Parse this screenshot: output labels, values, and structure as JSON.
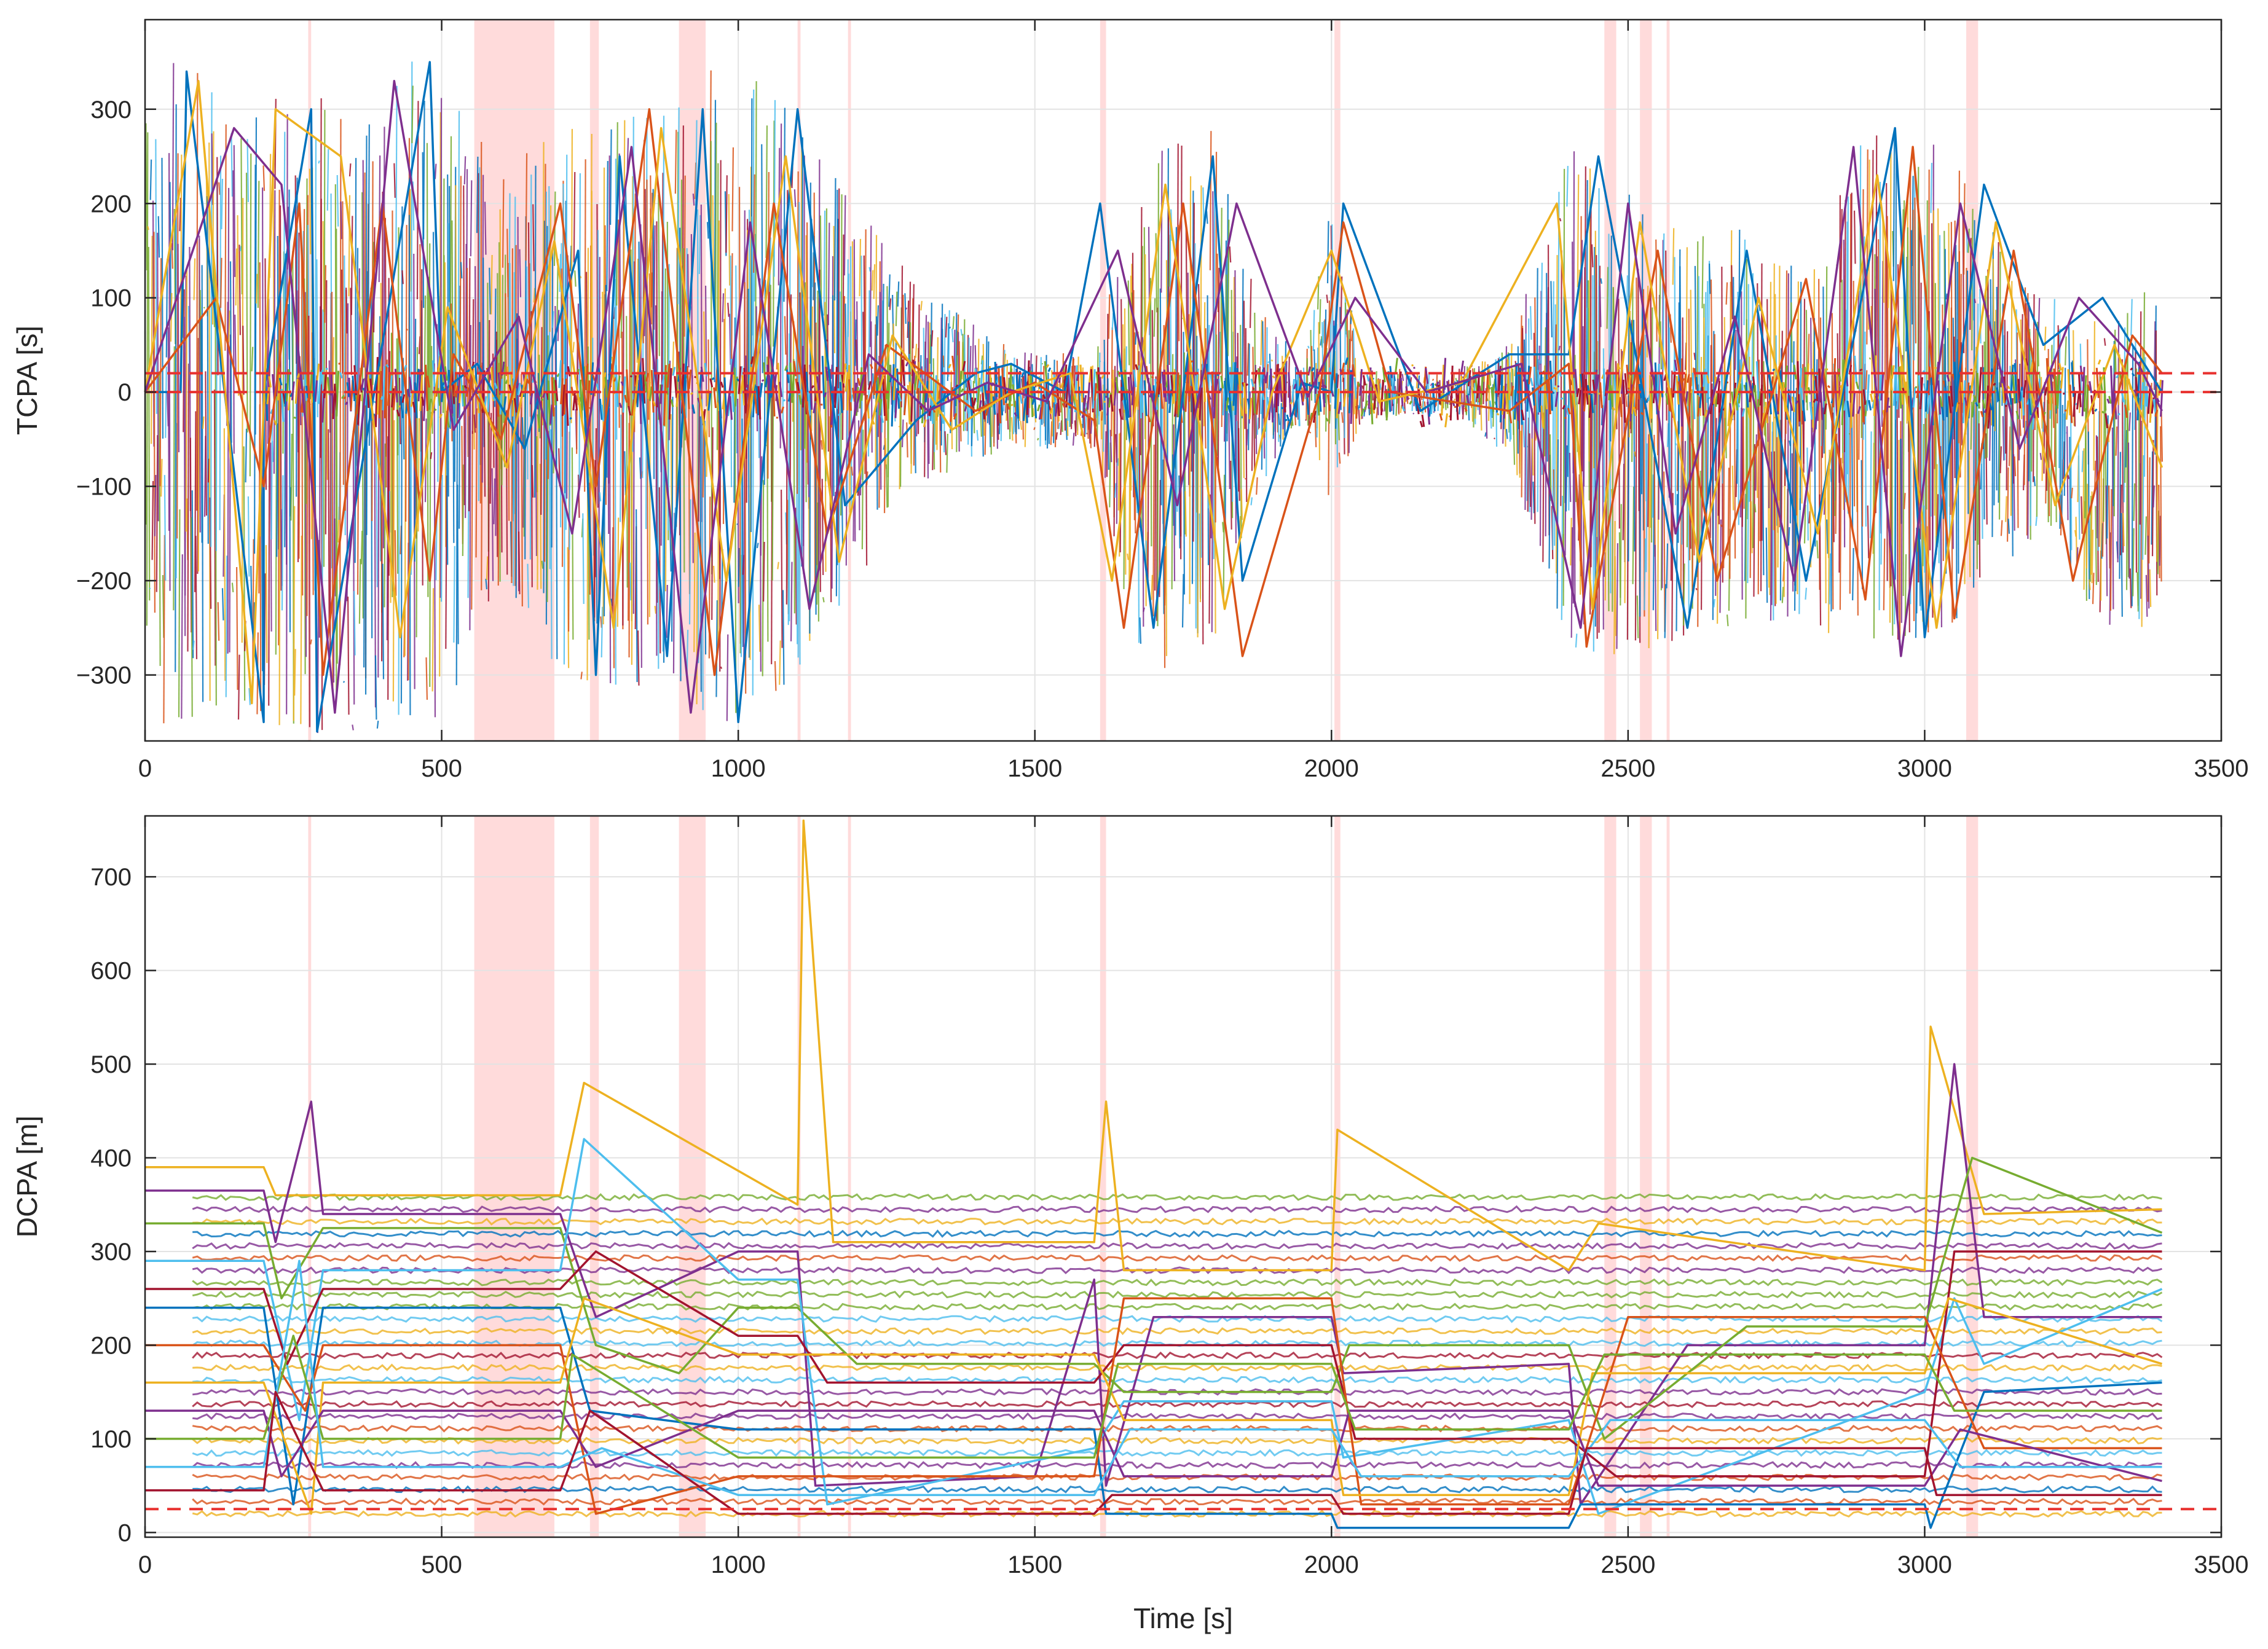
{
  "chart_data": [
    {
      "type": "line",
      "ylabel": "TCPA [s]",
      "xlabel": "",
      "xlim": [
        0,
        3500
      ],
      "ylim": [
        -370,
        395
      ],
      "xticks": [
        0,
        500,
        1000,
        1500,
        2000,
        2500,
        3000,
        3500
      ],
      "xtick_labels": [
        "0",
        "500",
        "1000",
        "1500",
        "2000",
        "2500",
        "3000",
        "3500"
      ],
      "yticks": [
        -300,
        -200,
        -100,
        0,
        100,
        200,
        300
      ],
      "ytick_labels": [
        "−300",
        "−200",
        "−100",
        "0",
        "100",
        "200",
        "300"
      ],
      "grid": true,
      "reference_lines": [
        {
          "value": 20,
          "style": "dashed",
          "color": "#e8312f"
        },
        {
          "value": 0,
          "style": "dashed",
          "color": "#e8312f"
        }
      ],
      "envelope": {
        "x": [
          0,
          60,
          200,
          270,
          350,
          500,
          600,
          700,
          800,
          880,
          940,
          1000,
          1100,
          1200,
          1300,
          1450,
          1600,
          1680,
          1800,
          1850,
          1950,
          2000,
          2050,
          2200,
          2300,
          2400,
          2500,
          2600,
          2700,
          2800,
          2900,
          2950,
          3000,
          3050,
          3100,
          3200,
          3300,
          3400
        ],
        "upper": [
          360,
          350,
          350,
          300,
          360,
          350,
          250,
          280,
          320,
          300,
          350,
          350,
          300,
          200,
          120,
          50,
          40,
          250,
          280,
          150,
          20,
          230,
          30,
          20,
          60,
          270,
          230,
          200,
          170,
          130,
          290,
          280,
          270,
          260,
          200,
          100,
          110,
          110
        ],
        "lower": [
          -360,
          -350,
          -350,
          -370,
          -360,
          -350,
          -200,
          -300,
          -320,
          -300,
          -350,
          -350,
          -300,
          -200,
          -100,
          -60,
          -60,
          -300,
          -280,
          -150,
          -20,
          -120,
          -30,
          -20,
          -70,
          -280,
          -280,
          -270,
          -240,
          -250,
          -270,
          -280,
          -260,
          -250,
          -200,
          -150,
          -250,
          -250
        ]
      },
      "shaded_intervals": [
        [
          275,
          280
        ],
        [
          555,
          690
        ],
        [
          750,
          765
        ],
        [
          900,
          945
        ],
        [
          1100,
          1105
        ],
        [
          1185,
          1190
        ],
        [
          1610,
          1620
        ],
        [
          2005,
          2015
        ],
        [
          2460,
          2480
        ],
        [
          2520,
          2540
        ],
        [
          2565,
          2570
        ],
        [
          3070,
          3090
        ]
      ],
      "series": [
        {
          "values_x": [
            0,
            60,
            70,
            200,
            200,
            280,
            290,
            480,
            500,
            560,
            640,
            730,
            760,
            800,
            880,
            940,
            1000,
            1100,
            1180,
            1300,
            1400,
            1460,
            1550,
            1610,
            1700,
            1800,
            1850,
            1950,
            2000,
            2020,
            2150,
            2300,
            2400,
            2450,
            2600,
            2700,
            2800,
            2950,
            3000,
            3100,
            3200,
            3300,
            3400
          ],
          "values_y": [
            0,
            0,
            340,
            -350,
            0,
            300,
            -360,
            350,
            0,
            30,
            -60,
            150,
            -300,
            250,
            -280,
            300,
            -350,
            300,
            -120,
            -30,
            20,
            30,
            0,
            200,
            -250,
            250,
            -200,
            10,
            0,
            200,
            -20,
            40,
            40,
            250,
            -250,
            150,
            -200,
            280,
            -260,
            220,
            50,
            100,
            0
          ]
        },
        {
          "values_x": [
            0,
            120,
            200,
            260,
            300,
            400,
            480,
            520,
            600,
            700,
            760,
            850,
            960,
            1060,
            1150,
            1250,
            1400,
            1500,
            1600,
            1650,
            1750,
            1850,
            1980,
            2020,
            2100,
            2300,
            2400,
            2430,
            2550,
            2650,
            2800,
            2900,
            2980,
            3050,
            3150,
            3250,
            3350,
            3400
          ],
          "values_y": [
            0,
            100,
            -100,
            200,
            -300,
            200,
            -200,
            40,
            -50,
            200,
            -100,
            300,
            -300,
            200,
            -150,
            50,
            -20,
            10,
            -30,
            -250,
            200,
            -280,
            0,
            180,
            0,
            -20,
            30,
            -270,
            150,
            -200,
            120,
            -220,
            260,
            -240,
            150,
            -200,
            60,
            20
          ]
        },
        {
          "values_x": [
            0,
            90,
            180,
            220,
            330,
            430,
            510,
            610,
            690,
            790,
            870,
            980,
            1080,
            1170,
            1260,
            1360,
            1460,
            1560,
            1630,
            1720,
            1820,
            1900,
            2000,
            2080,
            2220,
            2380,
            2440,
            2520,
            2620,
            2720,
            2820,
            2920,
            3020,
            3120,
            3220,
            3320,
            3400
          ],
          "values_y": [
            0,
            330,
            -330,
            300,
            250,
            -260,
            90,
            -80,
            160,
            -250,
            280,
            -200,
            250,
            -180,
            60,
            -40,
            0,
            20,
            -200,
            220,
            -230,
            0,
            150,
            -10,
            10,
            200,
            -230,
            180,
            -180,
            100,
            -150,
            230,
            -250,
            180,
            -120,
            50,
            -80
          ]
        },
        {
          "values_x": [
            0,
            150,
            230,
            320,
            420,
            520,
            630,
            720,
            820,
            920,
            1020,
            1120,
            1220,
            1320,
            1420,
            1520,
            1640,
            1740,
            1840,
            1960,
            2040,
            2160,
            2320,
            2420,
            2500,
            2580,
            2680,
            2780,
            2880,
            2960,
            3060,
            3160,
            3260,
            3360,
            3400
          ],
          "values_y": [
            0,
            280,
            220,
            -340,
            330,
            -40,
            80,
            -150,
            260,
            -340,
            180,
            -230,
            40,
            -20,
            10,
            -10,
            150,
            -120,
            200,
            -5,
            100,
            0,
            30,
            -250,
            200,
            -150,
            80,
            -200,
            260,
            -280,
            200,
            -60,
            100,
            30,
            -20
          ]
        }
      ]
    },
    {
      "type": "line",
      "ylabel": "DCPA [m]",
      "xlabel": "Time [s]",
      "xlim": [
        0,
        3500
      ],
      "ylim": [
        -5,
        765
      ],
      "xticks": [
        0,
        500,
        1000,
        1500,
        2000,
        2500,
        3000,
        3500
      ],
      "xtick_labels": [
        "0",
        "500",
        "1000",
        "1500",
        "2000",
        "2500",
        "3000",
        "3500"
      ],
      "yticks": [
        0,
        100,
        200,
        300,
        400,
        500,
        600,
        700
      ],
      "ytick_labels": [
        "0",
        "100",
        "200",
        "300",
        "400",
        "500",
        "600",
        "700"
      ],
      "grid": true,
      "reference_lines": [
        {
          "value": 25,
          "style": "dashed",
          "color": "#e8312f"
        }
      ],
      "shaded_intervals": [
        [
          275,
          280
        ],
        [
          555,
          690
        ],
        [
          750,
          765
        ],
        [
          900,
          945
        ],
        [
          1100,
          1105
        ],
        [
          1185,
          1190
        ],
        [
          1610,
          1620
        ],
        [
          2005,
          2015
        ],
        [
          2460,
          2480
        ],
        [
          2520,
          2540
        ],
        [
          2565,
          2570
        ],
        [
          3070,
          3090
        ]
      ],
      "series": [
        {
          "values_x": [
            0,
            200,
            220,
            700,
            740,
            1100,
            1110,
            1160,
            1600,
            1620,
            1650,
            2000,
            2010,
            2400,
            2450,
            3000,
            3010,
            3100,
            3400
          ],
          "values_y": [
            390,
            390,
            360,
            360,
            480,
            350,
            760,
            310,
            310,
            460,
            280,
            280,
            430,
            280,
            330,
            280,
            540,
            340,
            345
          ]
        },
        {
          "values_x": [
            0,
            200,
            220,
            280,
            300,
            700,
            760,
            1000,
            1100,
            1130,
            1500,
            1600,
            1620,
            1700,
            2000,
            2020,
            2400,
            2420,
            2600,
            3000,
            3050,
            3100,
            3400
          ],
          "values_y": [
            365,
            365,
            310,
            460,
            340,
            340,
            230,
            300,
            300,
            50,
            60,
            270,
            50,
            230,
            230,
            170,
            180,
            30,
            200,
            200,
            500,
            230,
            230
          ]
        },
        {
          "values_x": [
            0,
            200,
            230,
            300,
            700,
            760,
            900,
            1000,
            1100,
            1200,
            1600,
            1650,
            2000,
            2030,
            2400,
            2460,
            2700,
            3000,
            3080,
            3400
          ],
          "values_y": [
            330,
            330,
            250,
            325,
            325,
            200,
            170,
            240,
            240,
            180,
            180,
            150,
            150,
            200,
            200,
            100,
            220,
            220,
            400,
            320
          ]
        },
        {
          "values_x": [
            0,
            200,
            260,
            300,
            700,
            740,
            1000,
            1100,
            1150,
            1600,
            1650,
            2000,
            2020,
            2400,
            2450,
            3000,
            3050,
            3100,
            3400
          ],
          "values_y": [
            290,
            290,
            120,
            280,
            280,
            420,
            270,
            270,
            30,
            90,
            140,
            140,
            80,
            120,
            20,
            150,
            250,
            180,
            260
          ]
        },
        {
          "values_x": [
            0,
            200,
            240,
            300,
            700,
            760,
            1000,
            1100,
            1150,
            1600,
            1650,
            2000,
            2040,
            2400,
            2480,
            3000,
            3050,
            3400
          ],
          "values_y": [
            260,
            260,
            180,
            260,
            260,
            300,
            210,
            210,
            160,
            160,
            200,
            200,
            100,
            100,
            60,
            60,
            300,
            300
          ]
        },
        {
          "values_x": [
            0,
            200,
            250,
            300,
            700,
            750,
            1000,
            1100,
            1600,
            1620,
            2000,
            2010,
            2400,
            2420,
            3000,
            3010,
            3100,
            3400
          ],
          "values_y": [
            240,
            240,
            30,
            240,
            240,
            130,
            110,
            110,
            110,
            20,
            20,
            5,
            5,
            30,
            30,
            5,
            150,
            160
          ]
        },
        {
          "values_x": [
            0,
            200,
            270,
            300,
            700,
            760,
            1000,
            1100,
            1600,
            1650,
            2000,
            2050,
            2400,
            2500,
            3000,
            3100,
            3400
          ],
          "values_y": [
            200,
            200,
            130,
            200,
            200,
            20,
            60,
            60,
            60,
            250,
            250,
            30,
            30,
            230,
            230,
            90,
            90
          ]
        },
        {
          "values_x": [
            0,
            200,
            280,
            300,
            700,
            740,
            1000,
            1100,
            1600,
            1650,
            2000,
            2020,
            2400,
            2440,
            3000,
            3040,
            3400
          ],
          "values_y": [
            160,
            160,
            20,
            160,
            160,
            250,
            190,
            190,
            190,
            120,
            120,
            40,
            40,
            170,
            170,
            250,
            180
          ]
        },
        {
          "values_x": [
            0,
            200,
            230,
            300,
            700,
            760,
            1000,
            1100,
            1600,
            1650,
            2000,
            2030,
            2400,
            2450,
            3000,
            3060,
            3400
          ],
          "values_y": [
            130,
            130,
            60,
            130,
            130,
            70,
            130,
            130,
            130,
            60,
            60,
            130,
            130,
            50,
            50,
            110,
            55
          ]
        },
        {
          "values_x": [
            0,
            200,
            250,
            300,
            700,
            720,
            1000,
            1100,
            1600,
            1640,
            2000,
            2040,
            2400,
            2460,
            3000,
            3050,
            3400
          ],
          "values_y": [
            100,
            100,
            210,
            100,
            100,
            190,
            80,
            80,
            80,
            180,
            180,
            110,
            110,
            190,
            190,
            130,
            130
          ]
        },
        {
          "values_x": [
            0,
            200,
            260,
            300,
            700,
            770,
            1000,
            1100,
            1600,
            1660,
            2000,
            2050,
            2400,
            2470,
            3000,
            3060,
            3400
          ],
          "values_y": [
            70,
            70,
            290,
            70,
            70,
            90,
            40,
            40,
            40,
            110,
            110,
            60,
            60,
            120,
            120,
            70,
            70
          ]
        },
        {
          "values_x": [
            0,
            200,
            220,
            300,
            700,
            750,
            1000,
            1100,
            1600,
            1630,
            2000,
            2020,
            2400,
            2430,
            3000,
            3020,
            3400
          ],
          "values_y": [
            45,
            45,
            150,
            45,
            45,
            130,
            20,
            20,
            20,
            40,
            40,
            20,
            20,
            90,
            90,
            40,
            40
          ]
        }
      ]
    }
  ],
  "colors": {
    "palette": [
      "#0072bd",
      "#d95319",
      "#edb120",
      "#7e2f8e",
      "#77ac30",
      "#4dbeee",
      "#a2142f"
    ],
    "reference_line": "#e8312f",
    "shading": "#ff9999",
    "axes": "#262626",
    "grid": "#e3e3e3"
  }
}
